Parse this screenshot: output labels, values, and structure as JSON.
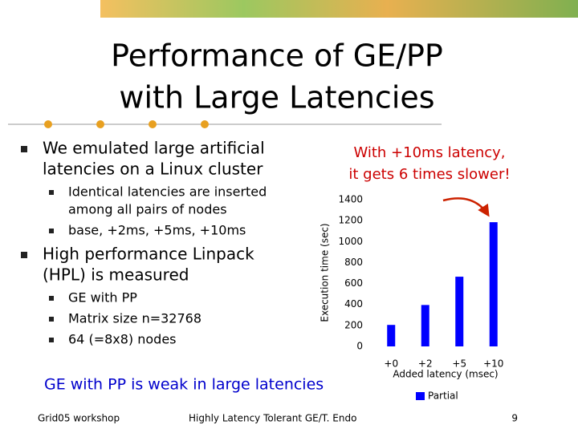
{
  "slide": {
    "title": [
      "Performance of GE/PP",
      "with Large Latencies"
    ],
    "bullets": [
      {
        "lines": [
          "We emulated large artificial",
          "latencies on a Linux cluster"
        ],
        "sub": [
          {
            "lines": [
              "Identical latencies are inserted",
              "among all pairs of nodes"
            ]
          },
          {
            "lines": [
              "base, +2ms, +5ms, +10ms"
            ]
          }
        ]
      },
      {
        "lines": [
          "High performance Linpack",
          "(HPL) is measured"
        ],
        "sub": [
          {
            "lines": [
              "GE with PP"
            ]
          },
          {
            "lines": [
              "Matrix size n=32768"
            ]
          },
          {
            "lines": [
              "64 (=8x8) nodes"
            ]
          }
        ]
      }
    ],
    "conclusion": "GE with PP is weak in large latencies",
    "footer": {
      "left": "Grid05 workshop",
      "center": "Highly Latency Tolerant GE/T. Endo",
      "page": 9
    }
  },
  "chart_data": {
    "type": "bar",
    "annotation": [
      "With +10ms latency,",
      "it gets 6 times slower!"
    ],
    "y_label": "Execution time (sec)",
    "x_label": "Added latency (msec)",
    "categories": [
      "+0",
      "+2",
      "+5",
      "+10"
    ],
    "series": [
      {
        "name": "Partial",
        "color": "#0000ff",
        "values": [
          205,
          395,
          665,
          1185
        ]
      }
    ],
    "ylim": [
      0,
      1400
    ],
    "yticks": [
      0,
      200,
      400,
      600,
      800,
      1000,
      1200,
      1400
    ],
    "legend": "bottom"
  }
}
